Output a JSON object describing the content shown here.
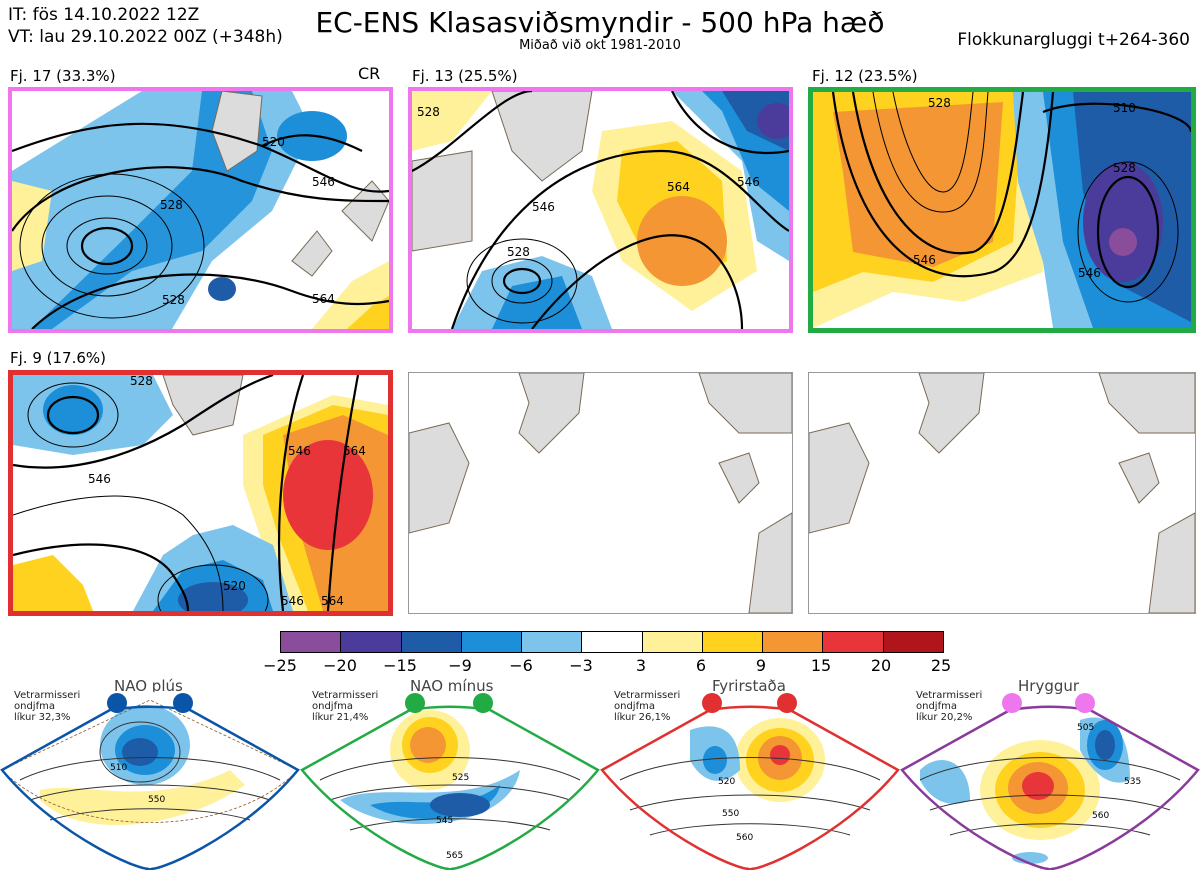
{
  "header": {
    "it": "IT: fös 14.10.2022 12Z",
    "vt": "VT: lau 29.10.2022 00Z  (+348h)",
    "title": "EC-ENS Klasasviðsmyndir - 500 hPa hæð",
    "subtitle": "Miðað við okt 1981-2010",
    "window": "Flokkunargluggi t+264-360"
  },
  "clusters": [
    {
      "label": "Fj. 17 (33.3%)",
      "tag": "CR",
      "border": "#ee77ee",
      "contours": [
        "528",
        "520",
        "546",
        "528",
        "546",
        "564"
      ]
    },
    {
      "label": "Fj. 13 (25.5%)",
      "tag": "",
      "border": "#ee77ee",
      "contours": [
        "528",
        "528",
        "546",
        "564",
        "546",
        "528",
        "564"
      ]
    },
    {
      "label": "Fj. 12 (23.5%)",
      "tag": "",
      "border": "#22aa44",
      "contours": [
        "528",
        "510",
        "528",
        "546",
        "546",
        "546"
      ]
    },
    {
      "label": "Fj. 9 (17.6%)",
      "tag": "",
      "border": "#e03030",
      "contours": [
        "528",
        "546",
        "546",
        "564",
        "520",
        "546",
        "564"
      ]
    }
  ],
  "colorbar": {
    "colors": [
      "#8a4d9c",
      "#4b3c9c",
      "#1f5ca8",
      "#1c8fd8",
      "#7cc4ec",
      "#ffffff",
      "#fff19a",
      "#ffd21f",
      "#f49634",
      "#e8353a",
      "#b0151c"
    ],
    "labels": [
      "−25",
      "−20",
      "−15",
      "−9",
      "−6",
      "−3",
      "3",
      "6",
      "9",
      "15",
      "20",
      "25"
    ]
  },
  "regimes": [
    {
      "title": "NAO plús",
      "season": "Vetrarmisseri",
      "type": "ondjfma",
      "prob": "líkur 32,3%",
      "color": "#0b55a8",
      "contours": [
        "510",
        "550"
      ]
    },
    {
      "title": "NAO mínus",
      "season": "Vetrarmisseri",
      "type": "ondjfma",
      "prob": "líkur 21,4%",
      "color": "#22aa44",
      "contours": [
        "525",
        "545",
        "565"
      ]
    },
    {
      "title": "Fyrirstaða",
      "season": "Vetrarmisseri",
      "type": "ondjfma",
      "prob": "líkur 26,1%",
      "color": "#e03030",
      "contours": [
        "520",
        "550",
        "560"
      ]
    },
    {
      "title": "Hryggur",
      "season": "Vetrarmisseri",
      "type": "ondjfma",
      "prob": "líkur 20,2%",
      "color": "#ee77ee",
      "contours": [
        "505",
        "535",
        "560"
      ]
    }
  ]
}
